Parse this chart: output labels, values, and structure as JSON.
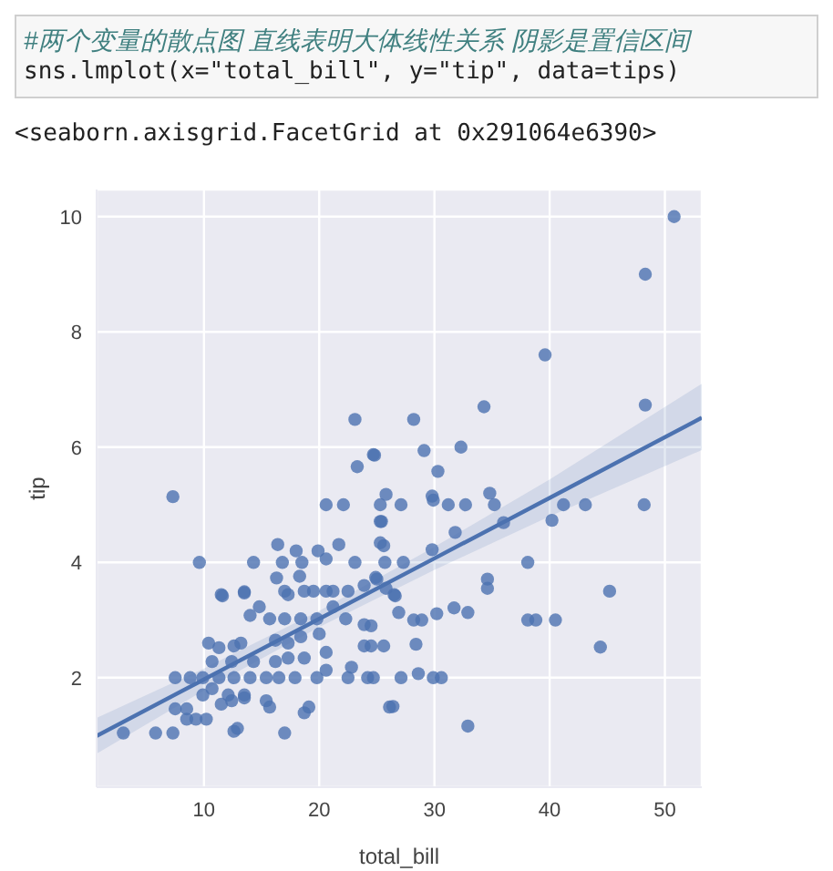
{
  "chart_data": {
    "type": "scatter",
    "annotations": [
      "#两个变量的散点图 直线表明大体线性关系 阴影是置信区间",
      "sns.lmplot(x=\"total_bill\", y=\"tip\", data=tips)",
      "<seaborn.axisgrid.FacetGrid at 0x291064e6390>"
    ],
    "xlabel": "total_bill",
    "ylabel": "tip",
    "xlim": [
      0.68,
      53.2
    ],
    "ylim": [
      0.1,
      10.47
    ],
    "xticks": [
      10,
      20,
      30,
      40,
      50
    ],
    "yticks": [
      2,
      4,
      6,
      8,
      10
    ],
    "grid": true,
    "series": [
      {
        "marker": "circle",
        "color": "#4c72b0",
        "x": [
          50.8,
          48.3,
          39.6,
          23.1,
          24.7,
          23.3,
          7.3,
          20.6,
          22.1,
          25.3,
          25.4,
          25.6,
          16.4,
          9.6,
          14.3,
          16.8,
          18.5,
          18.0,
          19.9,
          21.7,
          20.6,
          23.1,
          16.3,
          18.3,
          19.5,
          21.2,
          23.9,
          25.0,
          11.6,
          13.5,
          17.0,
          34.3,
          28.2,
          48.3,
          24.8,
          29.1,
          32.3,
          30.3,
          25.8,
          27.1,
          29.8,
          29.9,
          31.2,
          32.7,
          34.8,
          35.2,
          36.0,
          40.2,
          41.2,
          43.1,
          48.2,
          25.3,
          25.3,
          31.8,
          25.7,
          27.3,
          29.8,
          38.1,
          24.9,
          34.6,
          34.6,
          26.5,
          45.2,
          26.6,
          26.9,
          28.2,
          28.9,
          30.2,
          31.7,
          32.9,
          38.1,
          38.8,
          40.5,
          44.4,
          28.4,
          24.7,
          27.1,
          28.6,
          29.9,
          30.6,
          26.4,
          32.9,
          24.5,
          24.5,
          3.0,
          5.8,
          7.3,
          12.6,
          12.9,
          17.0,
          7.5,
          8.5,
          8.5,
          9.3,
          10.2,
          11.5,
          12.4,
          13.5,
          15.4,
          15.7,
          18.7,
          19.1,
          7.5,
          8.8,
          9.9,
          11.3,
          12.6,
          14.0,
          15.4,
          16.5,
          17.9,
          19.8,
          22.5,
          24.2,
          9.9,
          10.7,
          12.1,
          13.5,
          10.4,
          11.3,
          12.6,
          13.2,
          12.4,
          14.3,
          16.2,
          17.3,
          18.7,
          20.6,
          20.6,
          22.8,
          23.9,
          25.6,
          11.5,
          13.5,
          14.8,
          14.0,
          15.7,
          17.0,
          18.4,
          19.8,
          21.2,
          22.3,
          23.9,
          17.3,
          18.7,
          20.6,
          22.5,
          16.2,
          17.3,
          18.4,
          20.0,
          10.7,
          25.8,
          26.1
        ],
        "values": [
          10.0,
          9.0,
          7.6,
          6.48,
          5.87,
          5.66,
          5.14,
          5.0,
          5.0,
          5.0,
          4.71,
          4.29,
          4.31,
          4.0,
          4.0,
          4.0,
          4.0,
          4.2,
          4.2,
          4.31,
          4.06,
          4.0,
          3.73,
          3.76,
          3.5,
          3.5,
          3.6,
          3.71,
          3.42,
          3.49,
          3.5,
          6.7,
          6.48,
          6.73,
          5.86,
          5.94,
          6.0,
          5.58,
          5.18,
          5.0,
          5.15,
          5.08,
          5.0,
          5.0,
          5.2,
          5.0,
          4.69,
          4.73,
          5.0,
          5.0,
          5.0,
          4.71,
          4.34,
          4.52,
          4.0,
          4.0,
          4.22,
          4.0,
          3.74,
          3.71,
          3.55,
          3.44,
          3.5,
          3.42,
          3.13,
          3.0,
          3.0,
          3.11,
          3.21,
          3.13,
          3.0,
          3.0,
          3.0,
          2.53,
          2.58,
          2.0,
          2.0,
          2.07,
          2.0,
          2.0,
          1.5,
          1.16,
          2.55,
          2.9,
          1.04,
          1.04,
          1.04,
          1.07,
          1.12,
          1.04,
          1.46,
          1.46,
          1.28,
          1.28,
          1.28,
          1.54,
          1.6,
          1.65,
          1.6,
          1.49,
          1.39,
          1.49,
          2.0,
          2.0,
          2.0,
          2.0,
          2.0,
          2.0,
          2.0,
          2.0,
          2.0,
          2.0,
          2.0,
          2.0,
          1.7,
          1.81,
          1.7,
          1.7,
          2.6,
          2.52,
          2.55,
          2.6,
          2.28,
          2.28,
          2.28,
          2.34,
          2.34,
          2.44,
          2.13,
          2.18,
          2.55,
          2.55,
          3.44,
          3.47,
          3.23,
          3.08,
          3.02,
          3.02,
          3.02,
          3.02,
          3.23,
          3.02,
          2.92,
          3.44,
          3.5,
          3.5,
          3.5,
          2.65,
          2.6,
          2.71,
          2.76,
          2.28,
          3.55,
          1.49
        ]
      },
      {
        "type": "line",
        "color": "#4c72b0",
        "x": [
          0.68,
          10,
          20,
          30,
          40,
          53.2
        ],
        "values": [
          0.99,
          1.97,
          3.02,
          4.07,
          5.12,
          6.51
        ],
        "lower": [
          0.68,
          1.78,
          2.88,
          3.87,
          4.8,
          5.95
        ],
        "upper": [
          1.3,
          2.16,
          3.16,
          4.27,
          5.44,
          7.1
        ]
      }
    ]
  }
}
